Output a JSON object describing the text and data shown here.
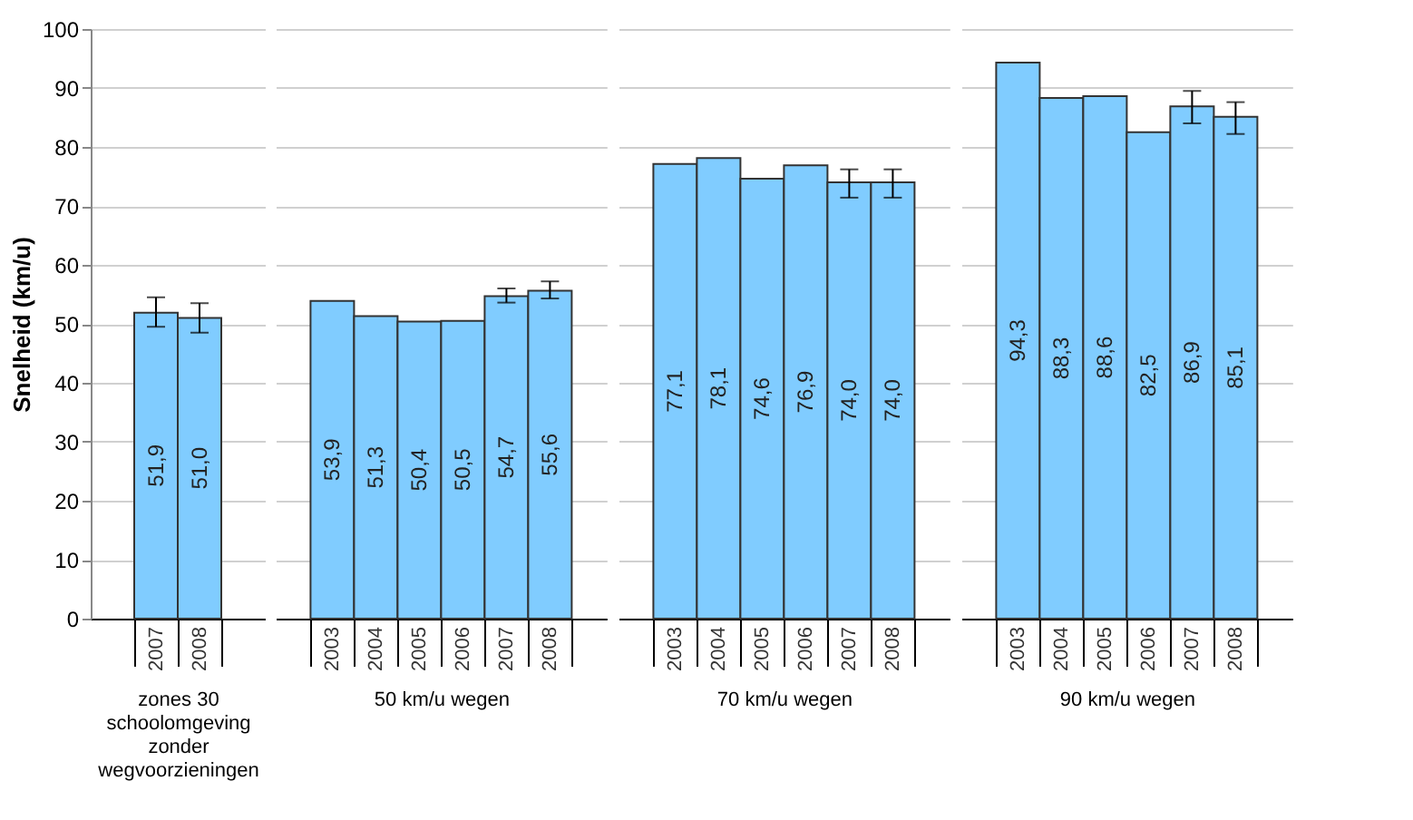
{
  "chart_data": [
    {
      "type": "bar",
      "xlabel": "zones 30 schoolomgeving zonder wegvoorzieningen",
      "ylabel": "Snelheid (km/u)",
      "categories": [
        "2007",
        "2008"
      ],
      "values": [
        51.9,
        51.0
      ],
      "value_labels": [
        "51,9",
        "51,0"
      ],
      "errors": [
        [
          49.5,
          54.5
        ],
        [
          48.5,
          53.5
        ]
      ],
      "color": "#80ccff",
      "ylim": [
        0,
        100
      ],
      "yticks": [
        0,
        10,
        20,
        30,
        40,
        50,
        60,
        70,
        80,
        90,
        100
      ],
      "grid": "y"
    },
    {
      "type": "bar",
      "xlabel": "50 km/u wegen",
      "categories": [
        "2003",
        "2004",
        "2005",
        "2006",
        "2007",
        "2008"
      ],
      "values": [
        53.9,
        51.3,
        50.4,
        50.5,
        54.7,
        55.6
      ],
      "value_labels": [
        "53,9",
        "51,3",
        "50,4",
        "50,5",
        "54,7",
        "55,6"
      ],
      "errors": [
        null,
        null,
        null,
        null,
        [
          53.6,
          56.0
        ],
        [
          54.3,
          57.2
        ]
      ],
      "color": "#80ccff",
      "ylim": [
        0,
        100
      ],
      "yticks": [
        0,
        10,
        20,
        30,
        40,
        50,
        60,
        70,
        80,
        90,
        100
      ],
      "grid": "y",
      "tick_labels": "x"
    },
    {
      "type": "bar",
      "xlabel": "70 km/u wegen",
      "categories": [
        "2003",
        "2004",
        "2005",
        "2006",
        "2007",
        "2008"
      ],
      "values": [
        77.1,
        78.1,
        74.6,
        76.9,
        74.0,
        74.0
      ],
      "value_labels": [
        "77,1",
        "78,1",
        "74,6",
        "76,9",
        "74,0",
        "74,0"
      ],
      "errors": [
        null,
        null,
        null,
        null,
        [
          71.4,
          76.2
        ],
        [
          71.4,
          76.2
        ]
      ],
      "color": "#80ccff",
      "ylim": [
        0,
        100
      ],
      "yticks": [
        0,
        10,
        20,
        30,
        40,
        50,
        60,
        70,
        80,
        90,
        100
      ],
      "grid": "y",
      "tick_labels": "x"
    },
    {
      "type": "bar",
      "xlabel": "90 km/u wegen",
      "categories": [
        "2003",
        "2004",
        "2005",
        "2006",
        "2007",
        "2008"
      ],
      "values": [
        94.3,
        88.3,
        88.6,
        82.5,
        86.9,
        85.1
      ],
      "value_labels": [
        "94,3",
        "88,3",
        "88,6",
        "82,5",
        "86,9",
        "85,1"
      ],
      "errors": [
        null,
        null,
        null,
        null,
        [
          84.0,
          89.5
        ],
        [
          82.2,
          87.6
        ]
      ],
      "color": "#80ccff",
      "ylim": [
        0,
        100
      ],
      "yticks": [
        0,
        10,
        20,
        30,
        40,
        50,
        60,
        70,
        80,
        90,
        100
      ],
      "grid": "y",
      "tick_labels": "x"
    }
  ]
}
